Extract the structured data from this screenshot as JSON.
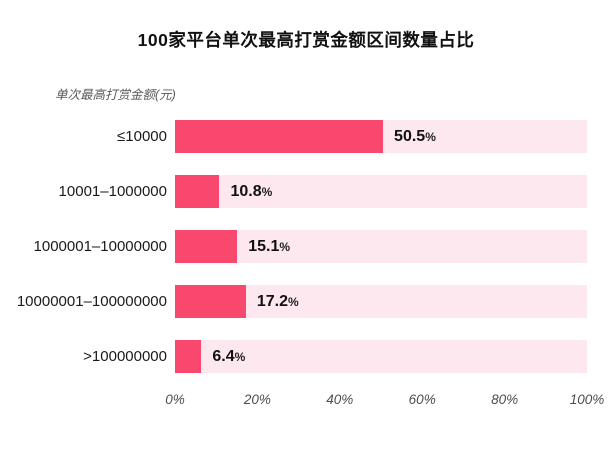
{
  "title": "100家平台单次最高打赏金额区间数量占比",
  "y_axis_label": "单次最高打赏金额(元)",
  "unit_sign": "%",
  "colors": {
    "bar": "#F8486E",
    "bar_track": "#FCE8EE",
    "title_text": "#111111",
    "axis_text": "#595959"
  },
  "chart_data": {
    "type": "bar",
    "orientation": "horizontal",
    "title": "100家平台单次最高打赏金额区间数量占比",
    "xlabel": "",
    "ylabel": "单次最高打赏金额(元)",
    "categories": [
      "≤10000",
      "10001–1000000",
      "1000001–10000000",
      "10000001–100000000",
      ">100000000"
    ],
    "values": [
      50.5,
      10.8,
      15.1,
      17.2,
      6.4
    ],
    "value_labels": [
      "50.5",
      "10.8",
      "15.1",
      "17.2",
      "6.4"
    ],
    "xlim": [
      0,
      100
    ],
    "x_ticks": [
      "0%",
      "20%",
      "40%",
      "60%",
      "80%",
      "100%"
    ],
    "grid": false,
    "legend": false
  }
}
